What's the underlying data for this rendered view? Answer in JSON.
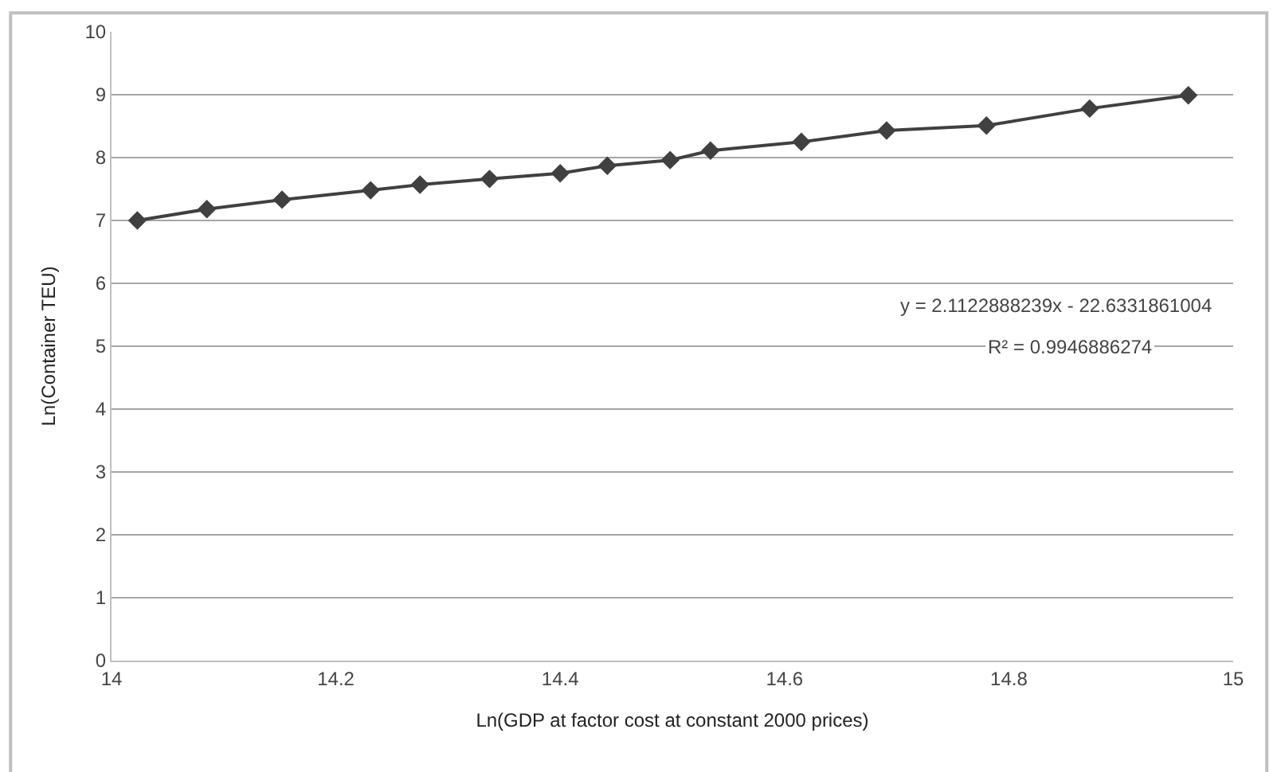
{
  "chart_data": {
    "type": "line",
    "xlabel": "Ln(GDP at factor cost at constant 2000 prices)",
    "ylabel": "Ln(Container TEU)",
    "x": [
      14.023,
      14.085,
      14.152,
      14.231,
      14.275,
      14.337,
      14.4,
      14.442,
      14.498,
      14.534,
      14.615,
      14.691,
      14.78,
      14.872,
      14.96
    ],
    "series": [
      {
        "color": "#404040",
        "values": [
          7.0,
          7.18,
          7.33,
          7.48,
          7.57,
          7.66,
          7.75,
          7.87,
          7.96,
          8.11,
          8.25,
          8.43,
          8.51,
          8.78,
          8.99
        ]
      }
    ],
    "xlim": [
      14,
      15
    ],
    "xticks": [
      14,
      14.2,
      14.4,
      14.6,
      14.8,
      15
    ],
    "ylim": [
      0,
      10
    ],
    "yticks": [
      0,
      1,
      2,
      3,
      4,
      5,
      6,
      7,
      8,
      9,
      10
    ],
    "annotations": [
      "y = 2.1122888239x - 22.6331861004",
      "R² = 0.9946886274"
    ],
    "grid": "y",
    "marker": "diamond",
    "line_style": "solid"
  }
}
